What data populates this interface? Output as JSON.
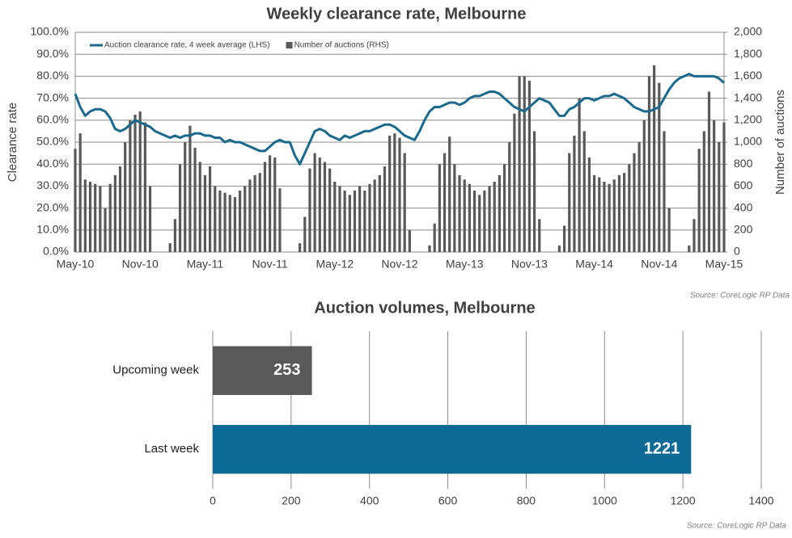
{
  "chart_data": [
    {
      "type": "combo",
      "title": "Weekly clearance rate, Melbourne",
      "source": "Source: CoreLogic  RP Data",
      "y_label": "Clearance rate",
      "y2_label": "Number of auctions",
      "legend": "top-left",
      "grid": true,
      "categories": [
        "May-10",
        null,
        null,
        null,
        null,
        null,
        null,
        null,
        null,
        null,
        null,
        null,
        null,
        "Nov-10",
        null,
        null,
        null,
        null,
        null,
        null,
        null,
        null,
        null,
        null,
        null,
        null,
        "May-11",
        null,
        null,
        null,
        null,
        null,
        null,
        null,
        null,
        null,
        null,
        null,
        null,
        "Nov-11",
        null,
        null,
        null,
        null,
        null,
        null,
        null,
        null,
        null,
        null,
        null,
        null,
        "May-12",
        null,
        null,
        null,
        null,
        null,
        null,
        null,
        null,
        null,
        null,
        null,
        null,
        "Nov-12",
        null,
        null,
        null,
        null,
        null,
        null,
        null,
        null,
        null,
        null,
        null,
        null,
        "May-13",
        null,
        null,
        null,
        null,
        null,
        null,
        null,
        null,
        null,
        null,
        null,
        null,
        "Nov-13",
        null,
        null,
        null,
        null,
        null,
        null,
        null,
        null,
        null,
        null,
        null,
        null,
        "May-14",
        null,
        null,
        null,
        null,
        null,
        null,
        null,
        null,
        null,
        null,
        null,
        null,
        "Nov-14",
        null,
        null,
        null,
        null,
        null,
        null,
        null,
        null,
        null,
        null,
        null,
        null,
        "May-15"
      ],
      "ylim": [
        0,
        100
      ],
      "yticks": [
        {
          "value": 0,
          "label": "0.0%"
        },
        {
          "value": 10,
          "label": "10.0%"
        },
        {
          "value": 20,
          "label": "20.0%"
        },
        {
          "value": 30,
          "label": "30.0%"
        },
        {
          "value": 40,
          "label": "40.0%"
        },
        {
          "value": 50,
          "label": "50.0%"
        },
        {
          "value": 60,
          "label": "60.0%"
        },
        {
          "value": 70,
          "label": "70.0%"
        },
        {
          "value": 80,
          "label": "80.0%"
        },
        {
          "value": 90,
          "label": "90.0%"
        },
        {
          "value": 100,
          "label": "100.0%"
        }
      ],
      "y2lim": [
        0,
        2000
      ],
      "y2ticks": [
        0,
        200,
        400,
        600,
        800,
        {
          "value": 1000,
          "label": "1,000"
        },
        {
          "value": 1200,
          "label": "1,200"
        },
        {
          "value": 1400,
          "label": "1,400"
        },
        {
          "value": 1600,
          "label": "1,600"
        },
        {
          "value": 1800,
          "label": "1,800"
        },
        {
          "value": 2000,
          "label": "2,000"
        }
      ],
      "series": [
        {
          "name": "Number of auctions (RHS)",
          "type": "bar",
          "axis": "y2",
          "color": "#595959",
          "values": [
            940,
            1080,
            660,
            640,
            620,
            600,
            400,
            620,
            700,
            780,
            1000,
            1200,
            1250,
            1280,
            1180,
            600,
            0,
            0,
            0,
            80,
            300,
            800,
            1000,
            1150,
            950,
            820,
            700,
            780,
            600,
            560,
            540,
            520,
            500,
            560,
            600,
            660,
            700,
            720,
            820,
            880,
            860,
            580,
            0,
            0,
            0,
            80,
            320,
            760,
            900,
            860,
            820,
            760,
            640,
            600,
            560,
            520,
            560,
            600,
            560,
            620,
            660,
            700,
            780,
            1060,
            1080,
            1040,
            900,
            200,
            0,
            0,
            0,
            60,
            260,
            800,
            900,
            1050,
            800,
            700,
            660,
            620,
            560,
            520,
            560,
            600,
            640,
            700,
            800,
            1000,
            1260,
            1600,
            1600,
            1560,
            1100,
            300,
            0,
            0,
            0,
            60,
            240,
            900,
            1060,
            1400,
            1100,
            860,
            700,
            680,
            640,
            620,
            660,
            700,
            720,
            800,
            900,
            1000,
            1200,
            1600,
            1700,
            1540,
            1100,
            400,
            0,
            0,
            0,
            60,
            300,
            940,
            1100,
            1460,
            1200,
            1000,
            1180
          ]
        },
        {
          "name": "Auction clearance rate, 4 week average (LHS)",
          "type": "line",
          "color": "#1b6a8c",
          "values": [
            72,
            66,
            62,
            64,
            65,
            65,
            64,
            61,
            56,
            55,
            56,
            58,
            60,
            59,
            58,
            57,
            55,
            54,
            53,
            52,
            53,
            52,
            53,
            53,
            54,
            54,
            53,
            53,
            52,
            52,
            50,
            51,
            50,
            50,
            49,
            48,
            47,
            46,
            46,
            48,
            50,
            51,
            50,
            50,
            44,
            40,
            45,
            50,
            55,
            56,
            55,
            53,
            52,
            51,
            53,
            52,
            53,
            54,
            55,
            55,
            56,
            57,
            58,
            58,
            57,
            55,
            53,
            52,
            51,
            55,
            60,
            64,
            66,
            66,
            67,
            68,
            68,
            67,
            68,
            70,
            71,
            71,
            72,
            73,
            73,
            72,
            70,
            68,
            66,
            65,
            64,
            66,
            68,
            70,
            69,
            68,
            65,
            62,
            62,
            65,
            66,
            68,
            70,
            70,
            69,
            70,
            71,
            71,
            72,
            71,
            70,
            68,
            66,
            65,
            64,
            64,
            65,
            66,
            70,
            74,
            77,
            79,
            80,
            81,
            80,
            80,
            80,
            80,
            80,
            79,
            77
          ]
        }
      ]
    },
    {
      "type": "hbar",
      "title": "Auction volumes, Melbourne",
      "source": "Source: CoreLogic  RP Data",
      "grid": true,
      "categories": [
        "Upcoming week",
        "Last week"
      ],
      "values": [
        253,
        1221
      ],
      "colors": [
        "#595959",
        "#0d6a94"
      ],
      "xlim": [
        0,
        1400
      ],
      "xticks": [
        0,
        200,
        400,
        600,
        800,
        1000,
        1200,
        1400
      ]
    }
  ]
}
